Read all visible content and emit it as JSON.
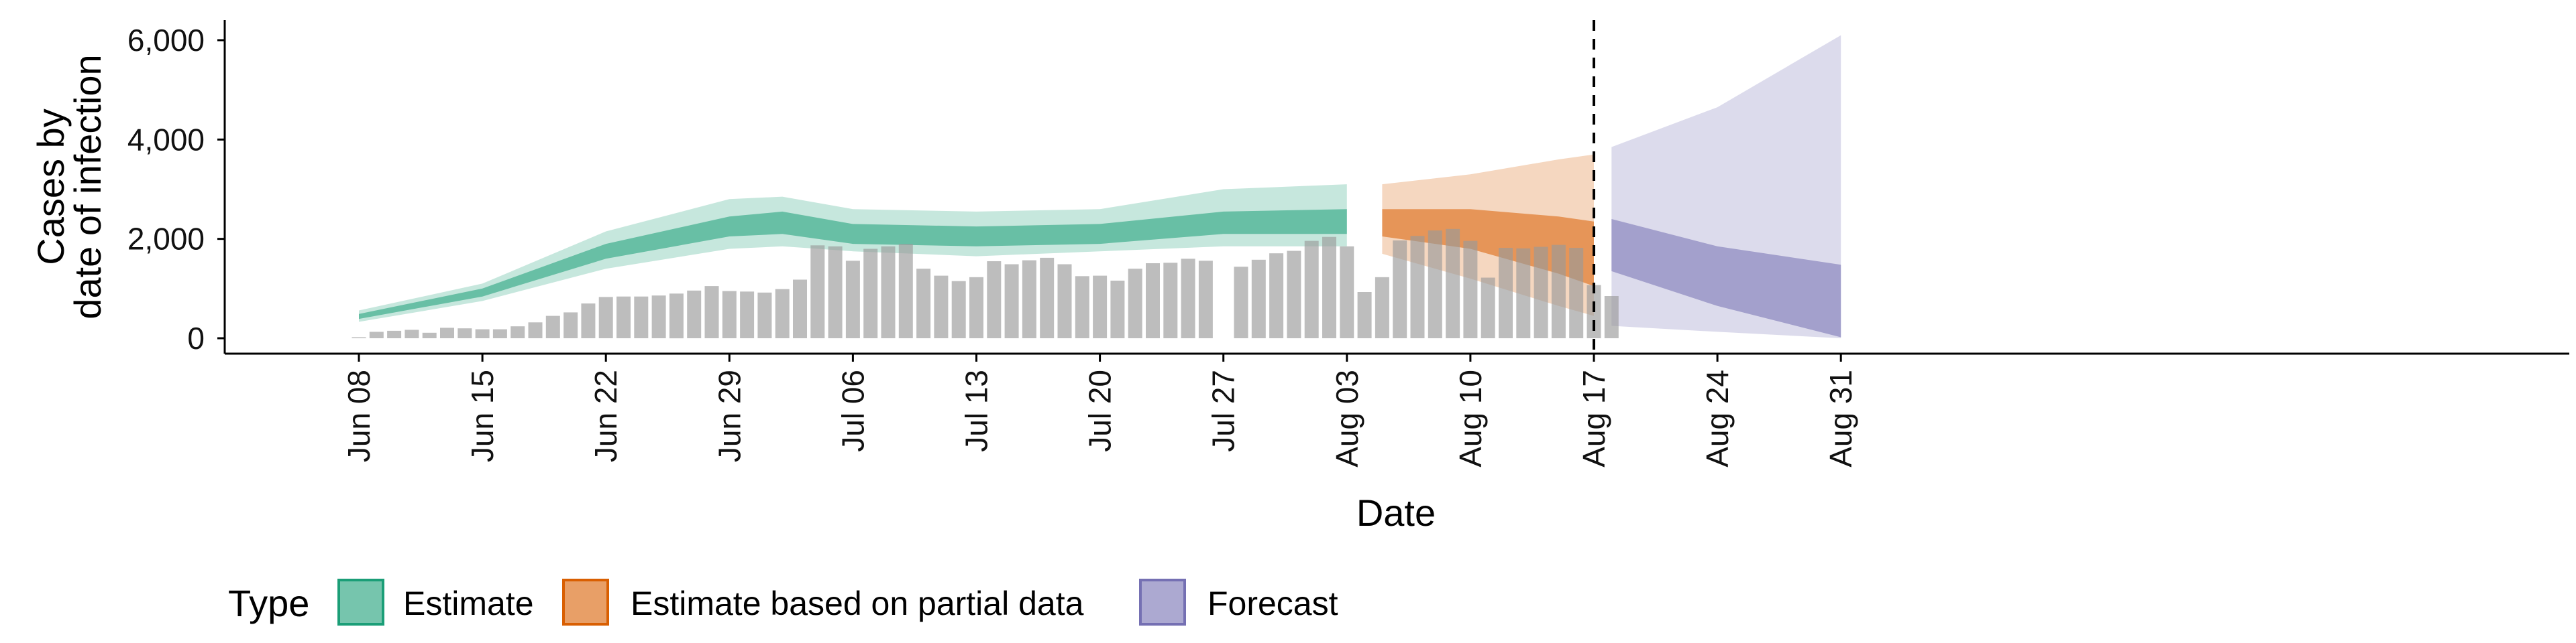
{
  "chart_data": {
    "type": "bar",
    "title": "",
    "xlabel": "Date",
    "ylabel_line1": "Cases by",
    "ylabel_line2": "date of infection",
    "ylim": [
      0,
      6400
    ],
    "yticks": [
      0,
      2000,
      4000,
      6000
    ],
    "ytick_labels": [
      "0",
      "2,000",
      "4,000",
      "6,000"
    ],
    "x_start": "2020-06-08",
    "xticks": [
      "Jun 08",
      "Jun 15",
      "Jun 22",
      "Jun 29",
      "Jul 06",
      "Jul 13",
      "Jul 20",
      "Jul 27",
      "Aug 03",
      "Aug 10",
      "Aug 17",
      "Aug 24",
      "Aug 31"
    ],
    "forecast_line_date": "Aug 17",
    "legend_title": "Type",
    "legend_position": "bottom",
    "grid": false,
    "series": [
      {
        "name": "Estimate",
        "color": "#1b9e77"
      },
      {
        "name": "Estimate based on partial data",
        "color": "#d95f02"
      },
      {
        "name": "Forecast",
        "color": "#7570b3"
      }
    ],
    "observed_cases": [
      {
        "date": "Jun 08",
        "value": 20
      },
      {
        "date": "Jun 09",
        "value": 130
      },
      {
        "date": "Jun 10",
        "value": 150
      },
      {
        "date": "Jun 11",
        "value": 170
      },
      {
        "date": "Jun 12",
        "value": 110
      },
      {
        "date": "Jun 13",
        "value": 210
      },
      {
        "date": "Jun 14",
        "value": 200
      },
      {
        "date": "Jun 15",
        "value": 180
      },
      {
        "date": "Jun 16",
        "value": 180
      },
      {
        "date": "Jun 17",
        "value": 240
      },
      {
        "date": "Jun 18",
        "value": 320
      },
      {
        "date": "Jun 19",
        "value": 450
      },
      {
        "date": "Jun 20",
        "value": 520
      },
      {
        "date": "Jun 21",
        "value": 700
      },
      {
        "date": "Jun 22",
        "value": 830
      },
      {
        "date": "Jun 23",
        "value": 840
      },
      {
        "date": "Jun 24",
        "value": 840
      },
      {
        "date": "Jun 25",
        "value": 860
      },
      {
        "date": "Jun 26",
        "value": 900
      },
      {
        "date": "Jun 27",
        "value": 960
      },
      {
        "date": "Jun 28",
        "value": 1050
      },
      {
        "date": "Jun 29",
        "value": 950
      },
      {
        "date": "Jun 30",
        "value": 940
      },
      {
        "date": "Jul 01",
        "value": 920
      },
      {
        "date": "Jul 02",
        "value": 990
      },
      {
        "date": "Jul 03",
        "value": 1180
      },
      {
        "date": "Jul 04",
        "value": 1870
      },
      {
        "date": "Jul 05",
        "value": 1850
      },
      {
        "date": "Jul 06",
        "value": 1560
      },
      {
        "date": "Jul 07",
        "value": 1800
      },
      {
        "date": "Jul 08",
        "value": 1850
      },
      {
        "date": "Jul 09",
        "value": 1900
      },
      {
        "date": "Jul 10",
        "value": 1400
      },
      {
        "date": "Jul 11",
        "value": 1260
      },
      {
        "date": "Jul 12",
        "value": 1150
      },
      {
        "date": "Jul 13",
        "value": 1230
      },
      {
        "date": "Jul 14",
        "value": 1550
      },
      {
        "date": "Jul 15",
        "value": 1490
      },
      {
        "date": "Jul 16",
        "value": 1570
      },
      {
        "date": "Jul 17",
        "value": 1620
      },
      {
        "date": "Jul 18",
        "value": 1490
      },
      {
        "date": "Jul 19",
        "value": 1250
      },
      {
        "date": "Jul 20",
        "value": 1260
      },
      {
        "date": "Jul 21",
        "value": 1160
      },
      {
        "date": "Jul 22",
        "value": 1400
      },
      {
        "date": "Jul 23",
        "value": 1510
      },
      {
        "date": "Jul 24",
        "value": 1520
      },
      {
        "date": "Jul 25",
        "value": 1600
      },
      {
        "date": "Jul 26",
        "value": 1560
      },
      {
        "date": "Jul 28",
        "value": 1440
      },
      {
        "date": "Jul 29",
        "value": 1580
      },
      {
        "date": "Jul 30",
        "value": 1710
      },
      {
        "date": "Jul 31",
        "value": 1760
      },
      {
        "date": "Aug 01",
        "value": 1960
      },
      {
        "date": "Aug 02",
        "value": 2040
      },
      {
        "date": "Aug 03",
        "value": 1850
      },
      {
        "date": "Aug 04",
        "value": 930
      },
      {
        "date": "Aug 05",
        "value": 1230
      },
      {
        "date": "Aug 06",
        "value": 1970
      },
      {
        "date": "Aug 07",
        "value": 2060
      },
      {
        "date": "Aug 08",
        "value": 2170
      },
      {
        "date": "Aug 09",
        "value": 2200
      },
      {
        "date": "Aug 10",
        "value": 1960
      },
      {
        "date": "Aug 11",
        "value": 1220
      },
      {
        "date": "Aug 12",
        "value": 1820
      },
      {
        "date": "Aug 13",
        "value": 1810
      },
      {
        "date": "Aug 14",
        "value": 1840
      },
      {
        "date": "Aug 15",
        "value": 1880
      },
      {
        "date": "Aug 16",
        "value": 1820
      },
      {
        "date": "Aug 17",
        "value": 1070
      },
      {
        "date": "Aug 18",
        "value": 850
      }
    ],
    "estimate_bands": [
      {
        "date": "Jun 08",
        "lo90": 330,
        "lo50": 390,
        "hi50": 490,
        "hi90": 560
      },
      {
        "date": "Jun 15",
        "lo90": 750,
        "lo50": 840,
        "hi50": 1000,
        "hi90": 1100
      },
      {
        "date": "Jun 22",
        "lo90": 1400,
        "lo50": 1600,
        "hi50": 1900,
        "hi90": 2150
      },
      {
        "date": "Jun 29",
        "lo90": 1800,
        "lo50": 2050,
        "hi50": 2450,
        "hi90": 2800
      },
      {
        "date": "Jul 02",
        "lo90": 1850,
        "lo50": 2100,
        "hi50": 2550,
        "hi90": 2850
      },
      {
        "date": "Jul 06",
        "lo90": 1750,
        "lo50": 1900,
        "hi50": 2300,
        "hi90": 2600
      },
      {
        "date": "Jul 13",
        "lo90": 1650,
        "lo50": 1850,
        "hi50": 2250,
        "hi90": 2550
      },
      {
        "date": "Jul 20",
        "lo90": 1750,
        "lo50": 1900,
        "hi50": 2300,
        "hi90": 2600
      },
      {
        "date": "Jul 27",
        "lo90": 1850,
        "lo50": 2100,
        "hi50": 2550,
        "hi90": 3000
      },
      {
        "date": "Aug 03",
        "lo90": 1850,
        "lo50": 2100,
        "hi50": 2600,
        "hi90": 3100
      }
    ],
    "partial_bands": [
      {
        "date": "Aug 05",
        "lo90": 1700,
        "lo50": 2050,
        "hi50": 2600,
        "hi90": 3100
      },
      {
        "date": "Aug 10",
        "lo90": 1200,
        "lo50": 1800,
        "hi50": 2600,
        "hi90": 3300
      },
      {
        "date": "Aug 15",
        "lo90": 650,
        "lo50": 1300,
        "hi50": 2450,
        "hi90": 3600
      },
      {
        "date": "Aug 17",
        "lo90": 450,
        "lo50": 1050,
        "hi50": 2350,
        "hi90": 3700
      }
    ],
    "forecast_bands": [
      {
        "date": "Aug 18",
        "lo90": 250,
        "lo50": 1350,
        "hi50": 2400,
        "hi90": 3850
      },
      {
        "date": "Aug 24",
        "lo90": 130,
        "lo50": 650,
        "hi50": 1850,
        "hi90": 4650
      },
      {
        "date": "Aug 31",
        "lo90": 0,
        "lo50": 20,
        "hi50": 1480,
        "hi90": 6100
      }
    ]
  }
}
